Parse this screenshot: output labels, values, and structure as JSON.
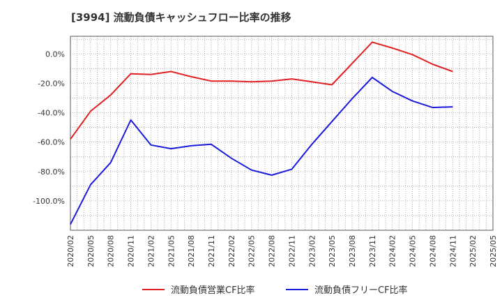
{
  "chart_data": {
    "type": "line",
    "title": "[3994]  流動負債キャッシュフロー比率の推移",
    "xlabel": "",
    "ylabel": "",
    "ylim": [
      -120,
      12
    ],
    "y_ticks": [
      0,
      -20,
      -40,
      -60,
      -80,
      -100
    ],
    "y_tick_labels": [
      "0.0%",
      "-20.0%",
      "-40.0%",
      "-60.0%",
      "-80.0%",
      "-100.0%"
    ],
    "categories": [
      "2020/02",
      "2020/05",
      "2020/08",
      "2020/11",
      "2021/02",
      "2021/05",
      "2021/08",
      "2021/11",
      "2022/02",
      "2022/05",
      "2022/08",
      "2022/11",
      "2023/02",
      "2023/05",
      "2023/08",
      "2023/11",
      "2024/02",
      "2024/05",
      "2024/08",
      "2024/11",
      "2025/02",
      "2025/05"
    ],
    "series": [
      {
        "name": "流動負債営業CF比率",
        "color": "#e02020",
        "values": [
          -58,
          -39,
          -28,
          -13.5,
          -14,
          -12,
          -15.5,
          -18.5,
          -18.5,
          -19,
          -18.5,
          -17,
          -19,
          -21,
          -6.5,
          8,
          4,
          -0.5,
          -7,
          -12,
          null,
          null
        ]
      },
      {
        "name": "流動負債フリーCF比率",
        "color": "#1a1adb",
        "values": [
          -116,
          -89,
          -74,
          -45,
          -62,
          -64.5,
          -62.5,
          -61.5,
          -71,
          -79,
          -82.5,
          -78.5,
          -61.5,
          -46,
          -30.5,
          -16,
          -25.5,
          -32,
          -36.5,
          -36,
          null,
          null
        ]
      }
    ],
    "legend_position": "bottom"
  }
}
